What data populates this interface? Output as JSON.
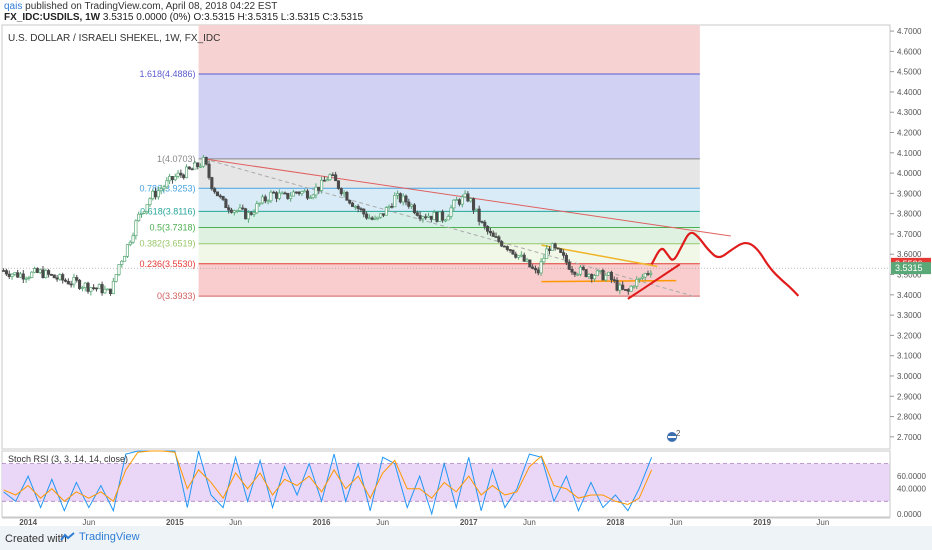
{
  "header": {
    "user": "qais",
    "published_text": "published on TradingView.com, April 08, 2018 04:22 EST",
    "symbol_line": "FX_IDC:USDILS, 1W",
    "ohlc_line": "3.5315 0.0000 (0%) O:3.5315 H:3.5315 L:3.5315 C:3.5315"
  },
  "footer": {
    "created_with": "Created with",
    "brand": "TradingView"
  },
  "colors": {
    "up": "#5aa877",
    "down": "#4a4a4a",
    "forecast": "#e01b1b",
    "trendline": "#e06060",
    "triangle_top": "#f0b428",
    "triangle_bottom": "#ff9800",
    "stoch_k": "#2196f3",
    "stoch_d": "#ff9800"
  },
  "chart_data": [
    {
      "type": "candlestick",
      "title": "U.S. DOLLAR / ISRAELI SHEKEL, 1W, FX_IDC",
      "x_tick_labels": [
        "2014",
        "Jun",
        "2015",
        "Jun",
        "2016",
        "Jun",
        "2017",
        "Jun",
        "2018",
        "Jun",
        "2019",
        "Jun"
      ],
      "x_tick_dates": [
        "2014-01-01",
        "2014-06-01",
        "2015-01-01",
        "2015-06-01",
        "2016-01-01",
        "2016-06-01",
        "2017-01-01",
        "2017-06-01",
        "2018-01-01",
        "2018-06-01",
        "2019-01-01",
        "2019-06-01"
      ],
      "xlim": [
        "2013-10-28",
        "2019-11-15"
      ],
      "ylim": [
        2.64,
        4.73
      ],
      "y_ticks": [
        "2.7000",
        "2.8000",
        "2.9000",
        "3.0000",
        "3.1000",
        "3.2000",
        "3.3000",
        "3.4000",
        "3.5000",
        "3.6000",
        "3.7000",
        "3.8000",
        "3.9000",
        "4.0000",
        "4.1000",
        "4.2000",
        "4.3000",
        "4.4000",
        "4.5000",
        "4.6000",
        "4.7000"
      ],
      "price_labels": [
        {
          "value": 3.5526,
          "text": "3.5526",
          "color": "#e53935"
        },
        {
          "value": 3.5315,
          "text": "3.5315",
          "color": "#5aa877"
        }
      ],
      "close_series": [
        [
          "2013-11-01",
          3.52
        ],
        [
          "2013-12-01",
          3.5
        ],
        [
          "2014-01-01",
          3.5
        ],
        [
          "2014-02-01",
          3.51
        ],
        [
          "2014-03-01",
          3.49
        ],
        [
          "2014-04-01",
          3.47
        ],
        [
          "2014-05-01",
          3.46
        ],
        [
          "2014-06-01",
          3.44
        ],
        [
          "2014-07-01",
          3.43
        ],
        [
          "2014-07-20",
          3.41
        ],
        [
          "2014-08-01",
          3.45
        ],
        [
          "2014-08-15",
          3.55
        ],
        [
          "2014-09-01",
          3.62
        ],
        [
          "2014-10-01",
          3.78
        ],
        [
          "2014-11-01",
          3.88
        ],
        [
          "2014-12-01",
          3.93
        ],
        [
          "2015-01-01",
          3.98
        ],
        [
          "2015-02-15",
          4.02
        ],
        [
          "2015-03-15",
          4.06
        ],
        [
          "2015-04-01",
          3.95
        ],
        [
          "2015-05-01",
          3.85
        ],
        [
          "2015-06-01",
          3.82
        ],
        [
          "2015-07-01",
          3.79
        ],
        [
          "2015-08-01",
          3.85
        ],
        [
          "2015-09-01",
          3.9
        ],
        [
          "2015-10-01",
          3.88
        ],
        [
          "2015-11-01",
          3.91
        ],
        [
          "2015-12-01",
          3.9
        ],
        [
          "2016-01-01",
          3.94
        ],
        [
          "2016-01-20",
          3.99
        ],
        [
          "2016-02-15",
          3.93
        ],
        [
          "2016-03-15",
          3.86
        ],
        [
          "2016-04-15",
          3.8
        ],
        [
          "2016-05-15",
          3.76
        ],
        [
          "2016-06-15",
          3.83
        ],
        [
          "2016-07-01",
          3.88
        ],
        [
          "2016-08-01",
          3.86
        ],
        [
          "2016-09-01",
          3.8
        ],
        [
          "2016-10-01",
          3.79
        ],
        [
          "2016-11-01",
          3.78
        ],
        [
          "2016-12-01",
          3.86
        ],
        [
          "2017-01-01",
          3.88
        ],
        [
          "2017-02-01",
          3.75
        ],
        [
          "2017-03-01",
          3.68
        ],
        [
          "2017-04-01",
          3.65
        ],
        [
          "2017-05-01",
          3.6
        ],
        [
          "2017-06-01",
          3.54
        ],
        [
          "2017-06-20",
          3.5
        ],
        [
          "2017-07-10",
          3.6
        ],
        [
          "2017-07-20",
          3.64
        ],
        [
          "2017-08-15",
          3.6
        ],
        [
          "2017-09-15",
          3.53
        ],
        [
          "2017-10-15",
          3.51
        ],
        [
          "2017-11-15",
          3.5
        ],
        [
          "2017-12-15",
          3.49
        ],
        [
          "2018-01-15",
          3.42
        ],
        [
          "2018-02-01",
          3.41
        ],
        [
          "2018-02-15",
          3.46
        ],
        [
          "2018-03-01",
          3.47
        ],
        [
          "2018-03-15",
          3.5
        ],
        [
          "2018-04-01",
          3.53
        ]
      ],
      "fibonacci": {
        "start_date": "2015-03-01",
        "end_date": "2018-07-30",
        "levels": [
          {
            "value": 3.3933,
            "label": "0(3.3933)",
            "line": "#d06060",
            "band": "#fde7e7"
          },
          {
            "value": 3.553,
            "label": "0.236(3.5530)",
            "line": "#e53935",
            "band": "#f9cdcd"
          },
          {
            "value": 3.6519,
            "label": "0.382(3.6519)",
            "line": "#99c76a",
            "band": "#f1f8e8"
          },
          {
            "value": 3.7318,
            "label": "0.5(3.7318)",
            "line": "#4caf50",
            "band": "#dff2e2"
          },
          {
            "value": 3.8116,
            "label": "0.618(3.8116)",
            "line": "#26a69a",
            "band": "#d6efe9"
          },
          {
            "value": 3.9253,
            "label": "0.786(3.9253)",
            "line": "#4aa3df",
            "band": "#d9ebf6"
          },
          {
            "value": 4.0703,
            "label": "1(4.0703)",
            "line": "#888888",
            "band": "#e6e6e6"
          },
          {
            "value": 4.4886,
            "label": "1.618(4.4886)",
            "line": "#5c5ccf",
            "band": "#d1d1f3"
          },
          {
            "value": 4.73,
            "label": "",
            "line": "#f3c6c6",
            "band": "#f7d2d2"
          }
        ]
      },
      "trendlines": [
        {
          "name": "resistance",
          "from": [
            "2015-03-15",
            4.07
          ],
          "to": [
            "2018-10-15",
            3.69
          ]
        },
        {
          "name": "dashed",
          "from": [
            "2015-03-15",
            4.07
          ],
          "to": [
            "2018-07-20",
            3.39
          ]
        },
        {
          "name": "triangle-top",
          "from": [
            "2017-07-01",
            3.645
          ],
          "to": [
            "2018-04-15",
            3.54
          ]
        },
        {
          "name": "triangle-bottom",
          "from": [
            "2017-07-01",
            3.465
          ],
          "to": [
            "2018-06-01",
            3.47
          ]
        },
        {
          "name": "support",
          "from": [
            "2018-02-01",
            3.38
          ],
          "to": [
            "2018-06-10",
            3.55
          ]
        }
      ],
      "forecast_path": [
        [
          "2018-04-01",
          3.55
        ],
        [
          "2018-04-25",
          3.64
        ],
        [
          "2018-05-10",
          3.6
        ],
        [
          "2018-05-25",
          3.56
        ],
        [
          "2018-06-15",
          3.64
        ],
        [
          "2018-07-05",
          3.715
        ],
        [
          "2018-07-25",
          3.69
        ],
        [
          "2018-08-20",
          3.62
        ],
        [
          "2018-09-15",
          3.575
        ],
        [
          "2018-10-15",
          3.62
        ],
        [
          "2018-11-20",
          3.665
        ],
        [
          "2018-12-20",
          3.63
        ],
        [
          "2019-01-20",
          3.53
        ],
        [
          "2019-02-20",
          3.47
        ],
        [
          "2019-03-10",
          3.44
        ],
        [
          "2019-04-01",
          3.395
        ]
      ]
    },
    {
      "type": "line",
      "title": "Stoch RSI (3, 3, 14, 14, close)",
      "ylim": [
        -5,
        100
      ],
      "y_ticks": [
        "0.0000",
        "40.0000",
        "60.0000"
      ],
      "band": [
        20,
        80
      ],
      "series": [
        {
          "name": "K",
          "x": [
            "2013-11-01",
            "2013-12-01",
            "2014-01-01",
            "2014-02-01",
            "2014-03-01",
            "2014-04-01",
            "2014-05-01",
            "2014-06-01",
            "2014-07-01",
            "2014-08-01",
            "2014-09-01",
            "2014-10-01",
            "2014-11-01",
            "2014-12-01",
            "2015-01-01",
            "2015-02-01",
            "2015-03-01",
            "2015-04-01",
            "2015-05-01",
            "2015-06-01",
            "2015-07-01",
            "2015-08-01",
            "2015-09-01",
            "2015-10-01",
            "2015-11-01",
            "2015-12-01",
            "2016-01-01",
            "2016-02-01",
            "2016-03-01",
            "2016-04-01",
            "2016-05-01",
            "2016-06-01",
            "2016-07-01",
            "2016-08-01",
            "2016-09-01",
            "2016-10-01",
            "2016-11-01",
            "2016-12-01",
            "2017-01-01",
            "2017-02-01",
            "2017-03-01",
            "2017-04-01",
            "2017-05-01",
            "2017-06-01",
            "2017-07-01",
            "2017-08-01",
            "2017-09-01",
            "2017-10-01",
            "2017-11-01",
            "2017-12-01",
            "2018-01-01",
            "2018-02-01",
            "2018-03-01",
            "2018-04-01"
          ],
          "values": [
            35,
            20,
            60,
            10,
            55,
            5,
            50,
            10,
            45,
            5,
            95,
            100,
            100,
            100,
            100,
            10,
            100,
            30,
            10,
            90,
            20,
            85,
            10,
            75,
            30,
            80,
            20,
            95,
            20,
            80,
            5,
            90,
            80,
            10,
            60,
            0,
            80,
            10,
            90,
            5,
            70,
            10,
            40,
            95,
            90,
            20,
            60,
            5,
            50,
            10,
            30,
            5,
            40,
            90
          ]
        },
        {
          "name": "D",
          "x": [
            "2013-11-01",
            "2013-12-01",
            "2014-01-01",
            "2014-02-01",
            "2014-03-01",
            "2014-04-01",
            "2014-05-01",
            "2014-06-01",
            "2014-07-01",
            "2014-08-01",
            "2014-09-01",
            "2014-10-01",
            "2014-11-01",
            "2014-12-01",
            "2015-01-01",
            "2015-02-01",
            "2015-03-01",
            "2015-04-01",
            "2015-05-01",
            "2015-06-01",
            "2015-07-01",
            "2015-08-01",
            "2015-09-01",
            "2015-10-01",
            "2015-11-01",
            "2015-12-01",
            "2016-01-01",
            "2016-02-01",
            "2016-03-01",
            "2016-04-01",
            "2016-05-01",
            "2016-06-01",
            "2016-07-01",
            "2016-08-01",
            "2016-09-01",
            "2016-10-01",
            "2016-11-01",
            "2016-12-01",
            "2017-01-01",
            "2017-02-01",
            "2017-03-01",
            "2017-04-01",
            "2017-05-01",
            "2017-06-01",
            "2017-07-01",
            "2017-08-01",
            "2017-09-01",
            "2017-10-01",
            "2017-11-01",
            "2017-12-01",
            "2018-01-01",
            "2018-02-01",
            "2018-03-01",
            "2018-04-01"
          ],
          "values": [
            38,
            30,
            45,
            25,
            40,
            20,
            35,
            25,
            35,
            20,
            70,
            98,
            100,
            100,
            98,
            40,
            70,
            50,
            25,
            65,
            40,
            65,
            30,
            55,
            45,
            60,
            35,
            70,
            40,
            60,
            25,
            65,
            85,
            40,
            40,
            25,
            50,
            35,
            60,
            30,
            45,
            30,
            35,
            75,
            92,
            45,
            40,
            25,
            30,
            30,
            20,
            15,
            25,
            70
          ]
        }
      ]
    }
  ]
}
